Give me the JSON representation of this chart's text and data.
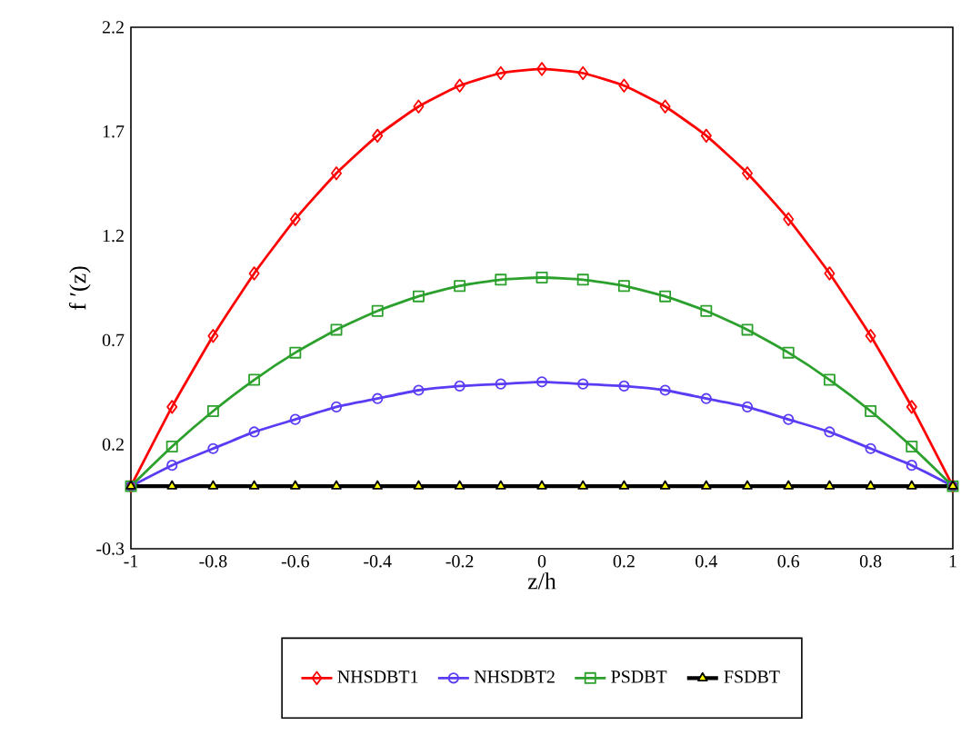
{
  "chart_data": {
    "type": "line",
    "xlabel": "z/h",
    "ylabel": "f ′(z)",
    "x": [
      -1,
      -0.9,
      -0.8,
      -0.7,
      -0.6,
      -0.5,
      -0.4,
      -0.3,
      -0.2,
      -0.1,
      0,
      0.1,
      0.2,
      0.3,
      0.4,
      0.5,
      0.6,
      0.7,
      0.8,
      0.9,
      1
    ],
    "series": [
      {
        "name": "NHSDBT1",
        "color": "#ff0000",
        "marker": "diamond",
        "values": [
          0,
          0.38,
          0.72,
          1.02,
          1.28,
          1.5,
          1.68,
          1.82,
          1.92,
          1.98,
          2.0,
          1.98,
          1.92,
          1.82,
          1.68,
          1.5,
          1.28,
          1.02,
          0.72,
          0.38,
          0
        ]
      },
      {
        "name": "NHSDBT2",
        "color": "#5b3cf5",
        "marker": "circle",
        "values": [
          0,
          0.1,
          0.18,
          0.26,
          0.32,
          0.38,
          0.42,
          0.46,
          0.48,
          0.49,
          0.5,
          0.49,
          0.48,
          0.46,
          0.42,
          0.38,
          0.32,
          0.26,
          0.18,
          0.1,
          0
        ]
      },
      {
        "name": "PSDBT",
        "color": "#2ca02c",
        "marker": "square",
        "values": [
          0,
          0.19,
          0.36,
          0.51,
          0.64,
          0.75,
          0.84,
          0.91,
          0.96,
          0.99,
          1.0,
          0.99,
          0.96,
          0.91,
          0.84,
          0.75,
          0.64,
          0.51,
          0.36,
          0.19,
          0
        ]
      },
      {
        "name": "FSDBT",
        "color": "#000000",
        "marker": "triangle",
        "values": [
          0,
          0,
          0,
          0,
          0,
          0,
          0,
          0,
          0,
          0,
          0,
          0,
          0,
          0,
          0,
          0,
          0,
          0,
          0,
          0,
          0
        ]
      }
    ],
    "xlim": [
      -1,
      1
    ],
    "xticks": [
      -1,
      -0.8,
      -0.6,
      -0.4,
      -0.2,
      0,
      0.2,
      0.4,
      0.6,
      0.8,
      1
    ],
    "ylim": [
      -0.3,
      2.2
    ],
    "yticks": [
      -0.3,
      0.2,
      0.7,
      1.2,
      1.7,
      2.2
    ],
    "grid": false,
    "legend": "bottom",
    "line_style": "solid"
  }
}
